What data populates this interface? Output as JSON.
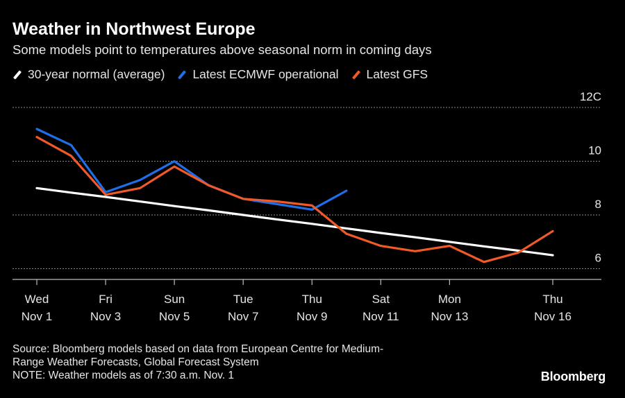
{
  "header": {
    "title": "Weather in Northwest Europe",
    "subtitle": "Some models point to temperatures above seasonal norm in coming days"
  },
  "footer": {
    "source_line1": "Source: Bloomberg models based on data from European Centre for Medium-",
    "source_line2": "Range Weather Forecasts, Global Forecast System",
    "note": "NOTE: Weather models as of 7:30 a.m. Nov. 1",
    "brand": "Bloomberg"
  },
  "colors": {
    "normal": "#ffffff",
    "ecmwf": "#1f6fe8",
    "gfs": "#f05a28",
    "grid": "#8a8a8a",
    "axis": "#bdbdbd"
  },
  "chart_data": {
    "type": "line",
    "x": [
      "Nov 1",
      "Nov 2",
      "Nov 3",
      "Nov 4",
      "Nov 5",
      "Nov 6",
      "Nov 7",
      "Nov 8",
      "Nov 9",
      "Nov 10",
      "Nov 11",
      "Nov 12",
      "Nov 13",
      "Nov 14",
      "Nov 15",
      "Nov 16"
    ],
    "tick_labels": [
      {
        "x": "Nov 1",
        "line1": "Wed",
        "line2": "Nov 1"
      },
      {
        "x": "Nov 3",
        "line1": "Fri",
        "line2": "Nov 3"
      },
      {
        "x": "Nov 5",
        "line1": "Sun",
        "line2": "Nov 5"
      },
      {
        "x": "Nov 7",
        "line1": "Tue",
        "line2": "Nov 7"
      },
      {
        "x": "Nov 9",
        "line1": "Thu",
        "line2": "Nov 9"
      },
      {
        "x": "Nov 11",
        "line1": "Sat",
        "line2": "Nov 11"
      },
      {
        "x": "Nov 13",
        "line1": "Mon",
        "line2": "Nov 13"
      },
      {
        "x": "Nov 16",
        "line1": "Thu",
        "line2": "Nov 16"
      }
    ],
    "series": [
      {
        "name": "30-year normal (average)",
        "color": "#ffffff",
        "values": [
          9.0,
          8.83,
          8.67,
          8.5,
          8.33,
          8.17,
          8.0,
          7.83,
          7.67,
          7.5,
          7.33,
          7.17,
          7.0,
          6.83,
          6.67,
          6.5
        ]
      },
      {
        "name": "Latest ECMWF operational",
        "color": "#1f6fe8",
        "values": [
          11.2,
          10.6,
          8.85,
          9.3,
          10.0,
          9.1,
          8.6,
          8.4,
          8.2,
          8.9,
          null,
          null,
          null,
          null,
          null,
          null
        ]
      },
      {
        "name": "Latest GFS",
        "color": "#f05a28",
        "values": [
          10.9,
          10.2,
          8.75,
          9.0,
          9.8,
          9.1,
          8.6,
          8.5,
          8.35,
          7.3,
          6.85,
          6.65,
          6.85,
          6.25,
          6.6,
          7.4
        ]
      }
    ],
    "yticks": [
      {
        "value": 6,
        "label": "6"
      },
      {
        "value": 8,
        "label": "8"
      },
      {
        "value": 10,
        "label": "10"
      },
      {
        "value": 12,
        "label": "12C"
      }
    ],
    "ylim": [
      5.6,
      12
    ],
    "grid": true,
    "legend_position": "top-left"
  }
}
